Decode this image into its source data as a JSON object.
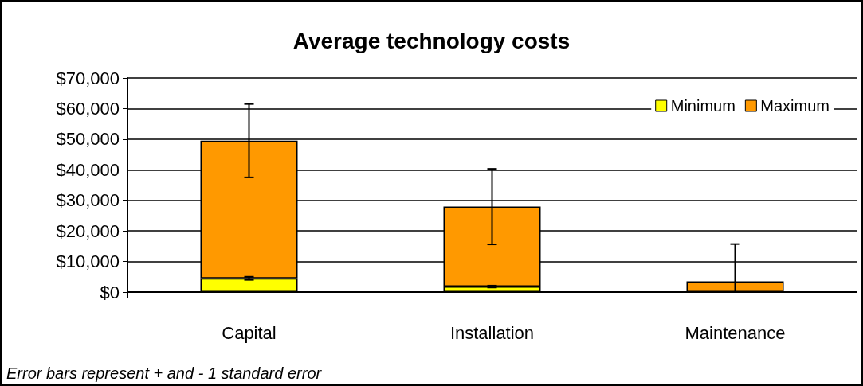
{
  "chart_data": {
    "type": "bar",
    "title": "Average technology costs",
    "stacked": true,
    "categories": [
      "Capital",
      "Installation",
      "Maintenance"
    ],
    "series": [
      {
        "name": "Minimum",
        "color": "#ffff00",
        "values": [
          4500,
          1800,
          null
        ],
        "errors": [
          [
            4000,
            5000
          ],
          [
            1500,
            2100
          ],
          null
        ]
      },
      {
        "name": "Maximum",
        "color": "#ff9900",
        "values": [
          45000,
          26200,
          3500
        ],
        "errors": [
          [
            37500,
            61500
          ],
          [
            15600,
            40300
          ],
          [
            0,
            15700
          ]
        ]
      }
    ],
    "ylim": [
      0,
      70000
    ],
    "yticks": [
      {
        "value": 0,
        "label": "$0"
      },
      {
        "value": 10000,
        "label": "$10,000"
      },
      {
        "value": 20000,
        "label": "$20,000"
      },
      {
        "value": 30000,
        "label": "$30,000"
      },
      {
        "value": 40000,
        "label": "$40,000"
      },
      {
        "value": 50000,
        "label": "$50,000"
      },
      {
        "value": 60000,
        "label": "$60,000"
      },
      {
        "value": 70000,
        "label": "$70,000"
      }
    ],
    "grid": "y",
    "legend": "top right",
    "annotations": [
      "Error bars represent + and - 1 standard error"
    ]
  }
}
